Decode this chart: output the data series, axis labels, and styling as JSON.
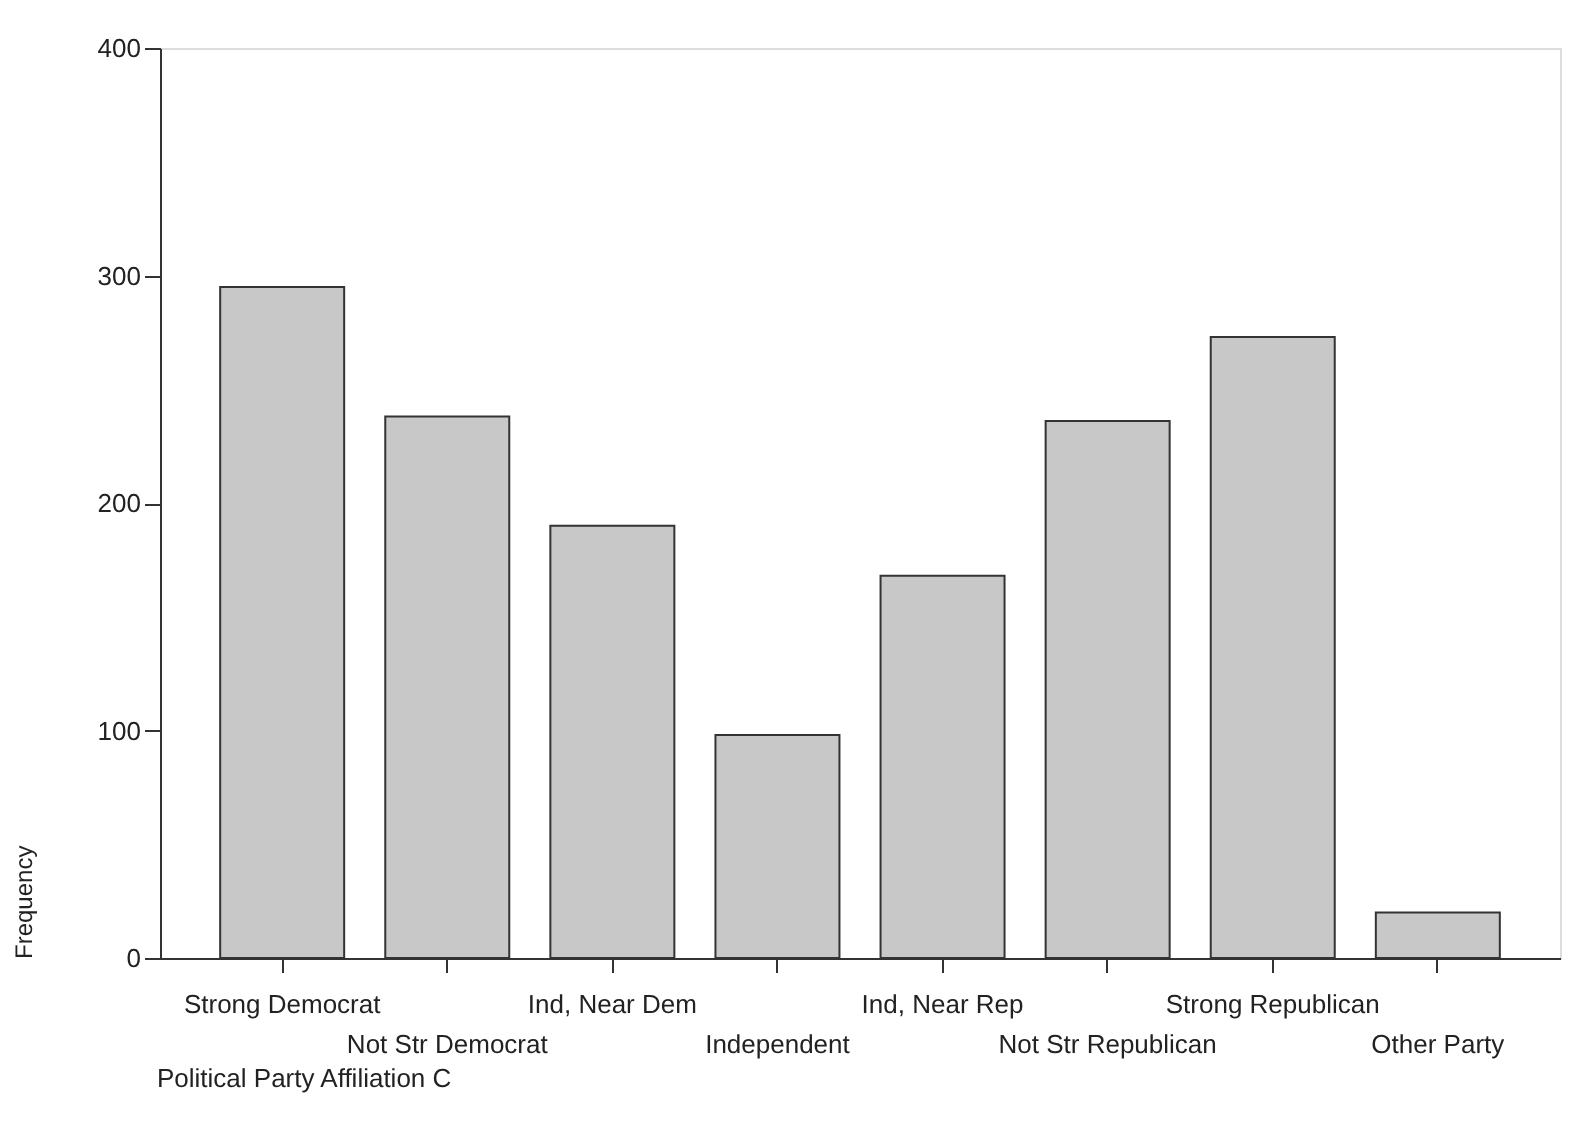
{
  "chart_data": {
    "type": "bar",
    "xlabel": "Political Party Affiliation C",
    "ylabel": "Frequency",
    "categories": [
      "Strong Democrat",
      "Not Str Democrat",
      "Ind, Near Dem",
      "Independent",
      "Ind, Near Rep",
      "Not Str Republican",
      "Strong Republican",
      "Other Party"
    ],
    "values": [
      295,
      238,
      190,
      98,
      168,
      236,
      273,
      20
    ],
    "color": "#c8c8c8",
    "ylim": [
      0,
      400
    ],
    "yticks": [
      0,
      100,
      200,
      300,
      400
    ],
    "grid": false
  }
}
